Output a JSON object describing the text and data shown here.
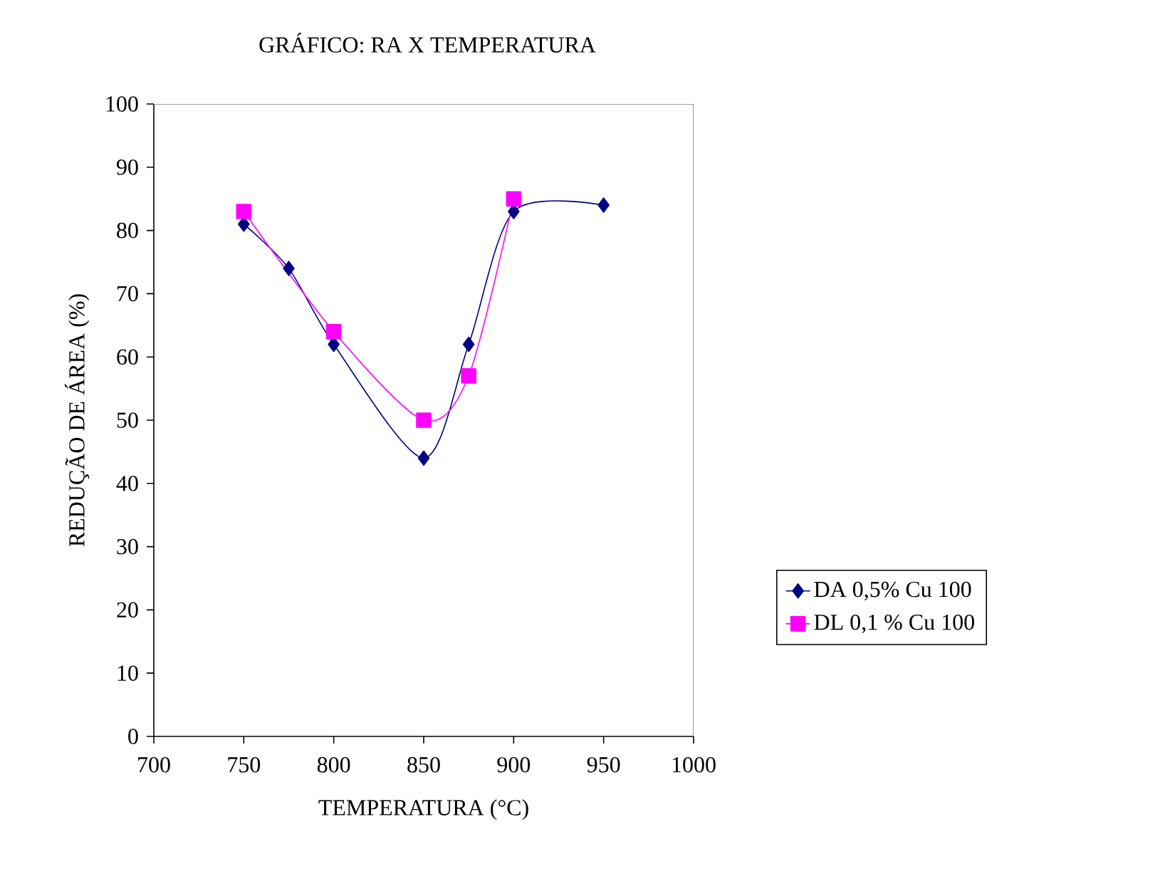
{
  "chart_data": {
    "type": "line",
    "title": "GRÁFICO: RA X TEMPERATURA",
    "xlabel": "TEMPERATURA (°C)",
    "ylabel": "REDUÇÃO DE ÁREA (%)",
    "xlim": [
      700,
      1000
    ],
    "xticks": [
      700,
      750,
      800,
      850,
      900,
      950,
      1000
    ],
    "ylim": [
      0,
      100
    ],
    "yticks": [
      0,
      10,
      20,
      30,
      40,
      50,
      60,
      70,
      80,
      90,
      100
    ],
    "grid": false,
    "legend": "right",
    "series": [
      {
        "name": "DA 0,5% Cu 100",
        "color": "#000080",
        "marker": "diamond",
        "x": [
          750,
          775,
          800,
          850,
          875,
          900,
          950
        ],
        "values": [
          81,
          74,
          62,
          44,
          62,
          83,
          84
        ]
      },
      {
        "name": "DL 0,1 % Cu 100",
        "color": "#ff00ff",
        "marker": "square",
        "x": [
          750,
          800,
          850,
          875,
          900
        ],
        "values": [
          83,
          64,
          50,
          57,
          85
        ]
      }
    ]
  }
}
